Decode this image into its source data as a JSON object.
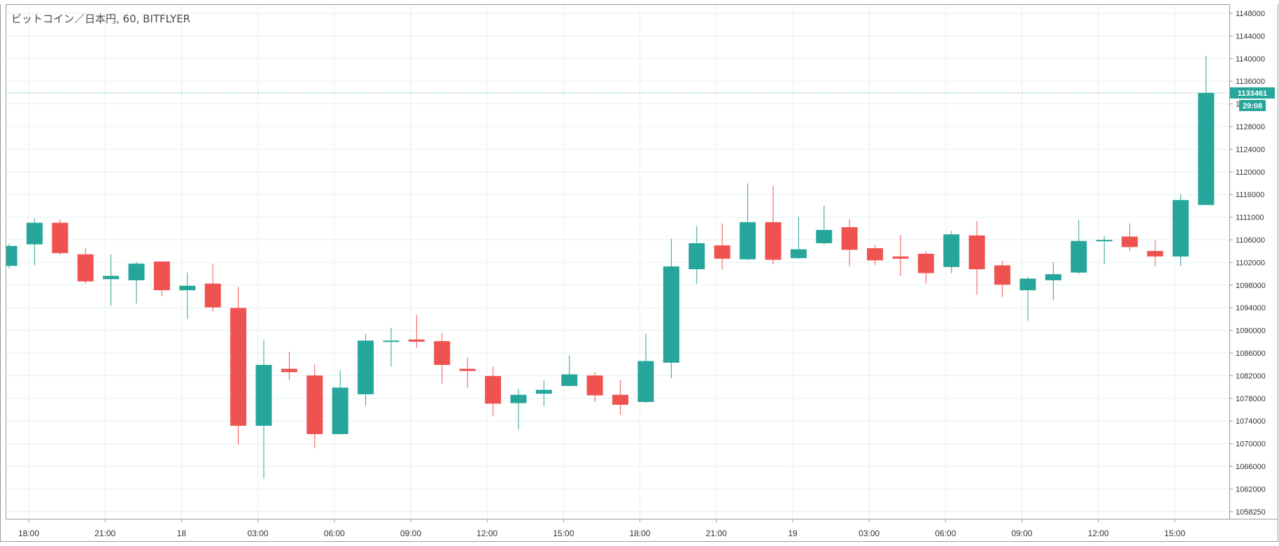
{
  "chart_title": "ビットコイン／日本円, 60, BITFLYER",
  "colors": {
    "up": "#26a69a",
    "down": "#ef5350",
    "grid": "#e6eff2",
    "axis_line": "#9a9a9a",
    "text": "#333333",
    "price_line": "#26a69a"
  },
  "price_label": "1133461",
  "countdown_label": "29:08",
  "chart_data": {
    "type": "candlestick",
    "title": "ビットコイン／日本円, 60, BITFLYER",
    "x_tick_labels": [
      "18:00",
      "21:00",
      "18",
      "03:00",
      "06:00",
      "09:00",
      "12:00",
      "15:00",
      "18:00",
      "21:00",
      "19",
      "03:00",
      "06:00",
      "09:00",
      "12:00",
      "15:00"
    ],
    "y_tick_labels": [
      "1148000",
      "1144000",
      "1140000",
      "1136000",
      "1132000",
      "1128000",
      "1124000",
      "1120000",
      "1116000",
      "1111000",
      "1106000",
      "1102000",
      "1098000",
      "1094000",
      "1090000",
      "1086000",
      "1082000",
      "1078000",
      "1074000",
      "1070000",
      "1066000",
      "1062000",
      "1058250"
    ],
    "ylim": [
      1056500,
      1149500
    ],
    "last_price": 1133461,
    "candles": [
      {
        "o": 1102200,
        "h": 1106200,
        "l": 1101800,
        "c": 1105800
      },
      {
        "o": 1106100,
        "h": 1110800,
        "l": 1102300,
        "c": 1110000
      },
      {
        "o": 1110000,
        "h": 1110600,
        "l": 1104200,
        "c": 1104500
      },
      {
        "o": 1104300,
        "h": 1105400,
        "l": 1099000,
        "c": 1099400
      },
      {
        "o": 1099800,
        "h": 1104300,
        "l": 1095000,
        "c": 1100400
      },
      {
        "o": 1099600,
        "h": 1102900,
        "l": 1095400,
        "c": 1102600
      },
      {
        "o": 1103000,
        "h": 1103000,
        "l": 1096700,
        "c": 1097800
      },
      {
        "o": 1097800,
        "h": 1101000,
        "l": 1092600,
        "c": 1098600
      },
      {
        "o": 1099000,
        "h": 1102600,
        "l": 1094000,
        "c": 1094700
      },
      {
        "o": 1094600,
        "h": 1098400,
        "l": 1069900,
        "c": 1073300
      },
      {
        "o": 1073300,
        "h": 1088800,
        "l": 1063800,
        "c": 1084300
      },
      {
        "o": 1083600,
        "h": 1086700,
        "l": 1081600,
        "c": 1083000
      },
      {
        "o": 1082400,
        "h": 1084400,
        "l": 1069200,
        "c": 1071800
      },
      {
        "o": 1071800,
        "h": 1083400,
        "l": 1071800,
        "c": 1080200
      },
      {
        "o": 1079000,
        "h": 1089900,
        "l": 1076900,
        "c": 1088700
      },
      {
        "o": 1088700,
        "h": 1091000,
        "l": 1084000,
        "c": 1088700
      },
      {
        "o": 1088900,
        "h": 1093300,
        "l": 1087400,
        "c": 1088500
      },
      {
        "o": 1088600,
        "h": 1090100,
        "l": 1080900,
        "c": 1084300
      },
      {
        "o": 1083600,
        "h": 1085600,
        "l": 1080200,
        "c": 1083200
      },
      {
        "o": 1082300,
        "h": 1084000,
        "l": 1075000,
        "c": 1077300
      },
      {
        "o": 1077400,
        "h": 1080000,
        "l": 1072600,
        "c": 1078900
      },
      {
        "o": 1079100,
        "h": 1081500,
        "l": 1076800,
        "c": 1079800
      },
      {
        "o": 1080500,
        "h": 1086000,
        "l": 1080400,
        "c": 1082600
      },
      {
        "o": 1082400,
        "h": 1083000,
        "l": 1077600,
        "c": 1078800
      },
      {
        "o": 1078900,
        "h": 1081600,
        "l": 1075300,
        "c": 1077100
      },
      {
        "o": 1077600,
        "h": 1089900,
        "l": 1077400,
        "c": 1085000
      },
      {
        "o": 1084700,
        "h": 1107100,
        "l": 1081900,
        "c": 1102100
      },
      {
        "o": 1101600,
        "h": 1109400,
        "l": 1099000,
        "c": 1106300
      },
      {
        "o": 1105900,
        "h": 1109900,
        "l": 1101500,
        "c": 1103500
      },
      {
        "o": 1103400,
        "h": 1117100,
        "l": 1103200,
        "c": 1110100
      },
      {
        "o": 1110100,
        "h": 1116600,
        "l": 1102500,
        "c": 1103300
      },
      {
        "o": 1103600,
        "h": 1111000,
        "l": 1103500,
        "c": 1105200
      },
      {
        "o": 1106300,
        "h": 1113100,
        "l": 1106000,
        "c": 1108700
      },
      {
        "o": 1109200,
        "h": 1110600,
        "l": 1102100,
        "c": 1105100
      },
      {
        "o": 1105400,
        "h": 1106000,
        "l": 1102400,
        "c": 1103200
      },
      {
        "o": 1103900,
        "h": 1107800,
        "l": 1100400,
        "c": 1103500
      },
      {
        "o": 1104400,
        "h": 1104800,
        "l": 1099000,
        "c": 1100900
      },
      {
        "o": 1102000,
        "h": 1108500,
        "l": 1100900,
        "c": 1107900
      },
      {
        "o": 1107700,
        "h": 1110300,
        "l": 1097000,
        "c": 1101600
      },
      {
        "o": 1102300,
        "h": 1103100,
        "l": 1096600,
        "c": 1098800
      },
      {
        "o": 1097800,
        "h": 1100200,
        "l": 1092300,
        "c": 1099900
      },
      {
        "o": 1099600,
        "h": 1102900,
        "l": 1096000,
        "c": 1100700
      },
      {
        "o": 1101000,
        "h": 1110500,
        "l": 1100700,
        "c": 1106700
      },
      {
        "o": 1106800,
        "h": 1107600,
        "l": 1102500,
        "c": 1106900
      },
      {
        "o": 1107500,
        "h": 1109900,
        "l": 1104900,
        "c": 1105600
      },
      {
        "o": 1104900,
        "h": 1106800,
        "l": 1102100,
        "c": 1103900
      },
      {
        "o": 1103900,
        "h": 1115100,
        "l": 1102200,
        "c": 1114100
      },
      {
        "o": 1113200,
        "h": 1140200,
        "l": 1113200,
        "c": 1133461
      }
    ]
  }
}
